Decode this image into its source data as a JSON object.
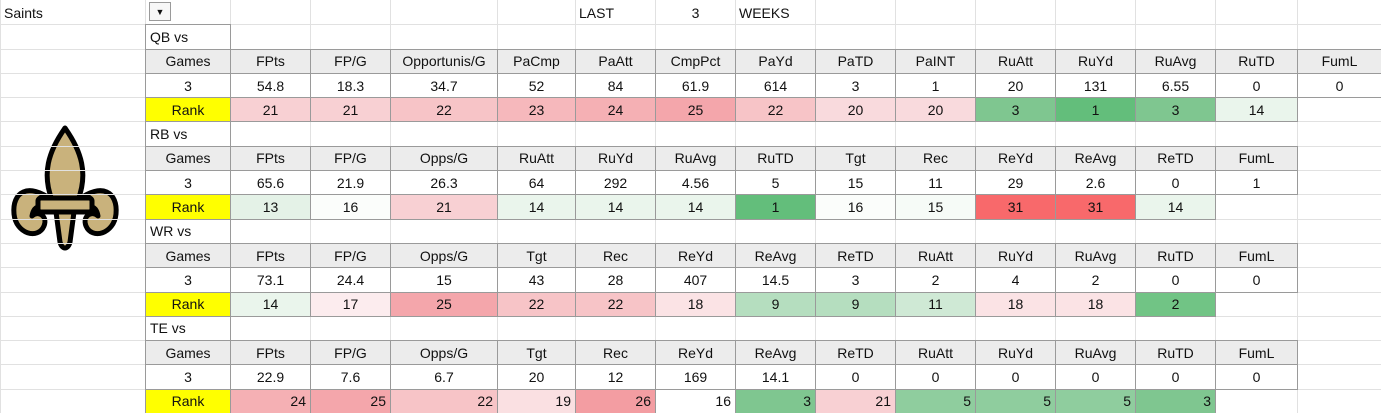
{
  "header": {
    "team": "Saints",
    "last": "LAST",
    "weeks_count": "3",
    "weeks": "WEEKS"
  },
  "sections": [
    {
      "label": "QB vs",
      "columns": [
        "Games",
        "FPts",
        "FP/G",
        "Opportunis/G",
        "PaCmp",
        "PaAtt",
        "CmpPct",
        "PaYd",
        "PaTD",
        "PaINT",
        "RuAtt",
        "RuYd",
        "RuAvg",
        "RuTD",
        "FumL"
      ],
      "values": [
        3,
        54.8,
        18.3,
        34.7,
        52,
        84,
        61.9,
        614,
        3,
        1,
        20,
        131,
        6.55,
        0,
        0
      ],
      "rank_label": "Rank",
      "ranks": [
        21,
        21,
        22,
        23,
        24,
        25,
        22,
        20,
        20,
        3,
        1,
        3,
        14
      ],
      "rank_colors": [
        "#f8d0d3",
        "#f8d0d3",
        "#f7c4c7",
        "#f6b8bc",
        "#f5b0b4",
        "#f4a6ab",
        "#f7c4c7",
        "#f9dadd",
        "#f9dadd",
        "#7fc690",
        "#63be7b",
        "#7fc690",
        "#eaf5ec"
      ]
    },
    {
      "label": "RB vs",
      "columns": [
        "Games",
        "FPts",
        "FP/G",
        "Opps/G",
        "RuAtt",
        "RuYd",
        "RuAvg",
        "RuTD",
        "Tgt",
        "Rec",
        "ReYd",
        "ReAvg",
        "ReTD",
        "FumL"
      ],
      "values": [
        3,
        65.6,
        21.9,
        26.3,
        64,
        292,
        4.56,
        5,
        15,
        11,
        29,
        2.6,
        0,
        1
      ],
      "rank_label": "Rank",
      "ranks": [
        13,
        16,
        21,
        14,
        14,
        14,
        1,
        16,
        15,
        31,
        31,
        14
      ],
      "rank_colors": [
        "#e4f2e7",
        "#fbfdfb",
        "#f8d0d3",
        "#eaf5ec",
        "#eaf5ec",
        "#eaf5ec",
        "#63be7b",
        "#fbfdfb",
        "#f6fbf7",
        "#f8696b",
        "#f8696b",
        "#eaf5ec"
      ]
    },
    {
      "label": "WR vs",
      "columns": [
        "Games",
        "FPts",
        "FP/G",
        "Opps/G",
        "Tgt",
        "Rec",
        "ReYd",
        "ReAvg",
        "ReTD",
        "RuAtt",
        "RuYd",
        "RuAvg",
        "RuTD",
        "FumL"
      ],
      "values": [
        3,
        73.1,
        24.4,
        15,
        43,
        28,
        407,
        14.5,
        3,
        2,
        4,
        2,
        0,
        0
      ],
      "rank_label": "Rank",
      "ranks": [
        14,
        17,
        25,
        22,
        22,
        18,
        9,
        9,
        11,
        18,
        18,
        2
      ],
      "rank_colors": [
        "#eaf5ec",
        "#fcecee",
        "#f4a6ab",
        "#f7c4c7",
        "#f7c4c7",
        "#fbe3e5",
        "#b5debf",
        "#b5debf",
        "#cfe9d5",
        "#fbe3e5",
        "#fbe3e5",
        "#71c485"
      ]
    },
    {
      "label": "TE vs",
      "columns": [
        "Games",
        "FPts",
        "FP/G",
        "Opps/G",
        "Tgt",
        "Rec",
        "ReYd",
        "ReAvg",
        "ReTD",
        "RuAtt",
        "RuYd",
        "RuAvg",
        "RuTD",
        "FumL"
      ],
      "values": [
        3,
        22.9,
        7.6,
        6.7,
        20,
        12,
        169,
        14.1,
        0,
        0,
        0,
        0,
        0,
        0
      ],
      "rank_label": "Rank",
      "ranks": [
        24,
        25,
        22,
        19,
        26,
        16,
        3,
        21,
        5,
        5,
        5,
        3
      ],
      "rank_colors": [
        "#f5b0b4",
        "#f4a6ab",
        "#f7c4c7",
        "#fae0e2",
        "#f39da2",
        "#ffffff",
        "#7fc690",
        "#f8d0d3",
        "#8fcd9e",
        "#8fcd9e",
        "#8fcd9e",
        "#7fc690"
      ],
      "rank_align": "right"
    }
  ]
}
